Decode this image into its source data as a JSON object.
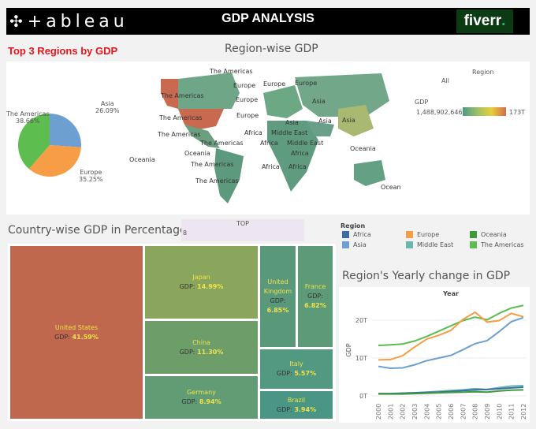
{
  "header": {
    "logo": "+ableau",
    "title": "GDP ANALYSIS",
    "brand": "fiverr",
    "brand_dot": "."
  },
  "pie": {
    "title": "Top 3 Regions by GDP",
    "slices": [
      {
        "label": "Asia",
        "pct": "26.09%",
        "value": 26.09,
        "color": "#6e9fd1"
      },
      {
        "label": "Europe",
        "pct": "35.25%",
        "value": 35.25,
        "color": "#f79d45"
      },
      {
        "label": "The Americas",
        "pct": "38.66%",
        "value": 38.66,
        "color": "#5dbd4f"
      }
    ]
  },
  "map": {
    "title": "Region-wise GDP",
    "filter_label": "Region",
    "filter_value": "All",
    "legend_label": "GDP",
    "legend_min": "1,488,902,646",
    "legend_max": "173T",
    "labels": [
      "The Americas",
      "Europe",
      "Europe",
      "Europe",
      "The Americas",
      "Europe",
      "Asia",
      "The Americas",
      "Europe",
      "Asia",
      "Africa",
      "Middle East",
      "Asia",
      "Asia",
      "The Americas",
      "The Americas",
      "Africa",
      "Middle East",
      "Oceania",
      "Oceania",
      "Africa",
      "The Americas",
      "Africa",
      "Africa",
      "The Americas",
      "Oceania",
      "Ocean"
    ]
  },
  "treemap": {
    "title": "Country-wise GDP in Percentage",
    "filter_label": "TOP",
    "filter_value": "8",
    "gdp_prefix": "GDP:",
    "cells": [
      {
        "name": "United States",
        "pct": "41.59%"
      },
      {
        "name": "Japan",
        "pct": "14.99%"
      },
      {
        "name": "China",
        "pct": "11.30%"
      },
      {
        "name": "Germany",
        "pct": "8.94%"
      },
      {
        "name": "United Kingdom",
        "pct": "6.85%"
      },
      {
        "name": "France",
        "pct": "6.82%"
      },
      {
        "name": "Italy",
        "pct": "5.57%"
      },
      {
        "name": "Brazil",
        "pct": "3.94%"
      }
    ]
  },
  "legend": {
    "title": "Region",
    "items": [
      {
        "label": "Africa",
        "color": "#3a6ea5"
      },
      {
        "label": "Europe",
        "color": "#f79d45"
      },
      {
        "label": "Oceania",
        "color": "#3f9a3b"
      },
      {
        "label": "Asia",
        "color": "#6e9fd1"
      },
      {
        "label": "Middle East",
        "color": "#6ab7b0"
      },
      {
        "label": "The Americas",
        "color": "#5dbd4f"
      }
    ]
  },
  "chart_data": {
    "type": "line",
    "title": "Region's Yearly change in GDP",
    "xlabel": "Year",
    "ylabel": "GDP",
    "x": [
      "2000",
      "2001",
      "2002",
      "2003",
      "2004",
      "2005",
      "2006",
      "2007",
      "2008",
      "2009",
      "2010",
      "2011",
      "2012"
    ],
    "yticks": [
      "0T",
      "10T",
      "20T"
    ],
    "ylim": [
      0,
      25
    ],
    "grid": true,
    "series": [
      {
        "name": "The Americas",
        "color": "#5dbd4f",
        "values": [
          13.3,
          13.5,
          13.7,
          14.5,
          15.7,
          17.1,
          18.5,
          19.9,
          20.8,
          20.1,
          21.8,
          23.2,
          23.9
        ]
      },
      {
        "name": "Europe",
        "color": "#f79d45",
        "values": [
          9.5,
          9.6,
          10.6,
          12.9,
          15.0,
          16.0,
          17.3,
          20.2,
          22.1,
          19.5,
          19.9,
          21.8,
          20.9
        ]
      },
      {
        "name": "Asia",
        "color": "#6e9fd1",
        "values": [
          7.8,
          7.3,
          7.4,
          8.2,
          9.3,
          10.0,
          10.7,
          12.2,
          13.8,
          14.6,
          17.0,
          19.6,
          20.7
        ]
      },
      {
        "name": "Middle East",
        "color": "#6ab7b0",
        "values": [
          0.6,
          0.6,
          0.7,
          0.8,
          1.0,
          1.2,
          1.4,
          1.6,
          1.9,
          1.7,
          2.2,
          2.6,
          2.7
        ]
      },
      {
        "name": "Africa",
        "color": "#3a6ea5",
        "values": [
          0.6,
          0.6,
          0.7,
          0.8,
          0.9,
          1.0,
          1.2,
          1.4,
          1.6,
          1.7,
          1.9,
          2.1,
          2.3
        ]
      },
      {
        "name": "Oceania",
        "color": "#3f9a3b",
        "values": [
          0.5,
          0.5,
          0.5,
          0.6,
          0.7,
          0.8,
          0.9,
          1.0,
          1.1,
          1.0,
          1.3,
          1.5,
          1.6
        ]
      }
    ]
  }
}
